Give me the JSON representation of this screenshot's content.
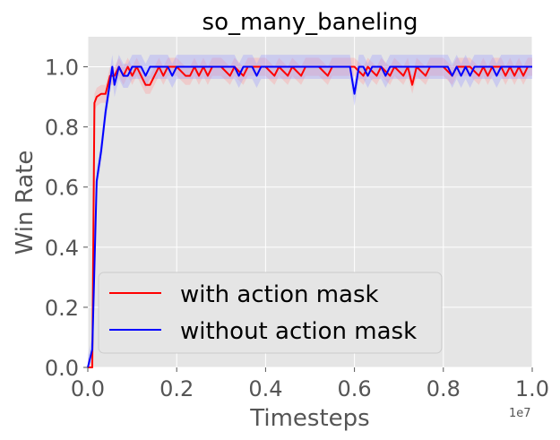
{
  "chart_data": {
    "type": "line",
    "title": "so_many_baneling",
    "xlabel": "Timesteps",
    "ylabel": "Win Rate",
    "x_offset_label": "1e7",
    "xlim": [
      0,
      1.0
    ],
    "ylim": [
      0,
      1.1
    ],
    "x_ticks": [
      "0.0",
      "0.2",
      "0.4",
      "0.6",
      "0.8",
      "1.0"
    ],
    "y_ticks": [
      "0.0",
      "0.2",
      "0.4",
      "0.6",
      "0.8",
      "1.0"
    ],
    "grid": true,
    "legend_position": "lower-left",
    "background": "#e5e5e5",
    "series": [
      {
        "name": "with action mask",
        "color": "#ff0000",
        "band_color": "#ff9b9b",
        "points": [
          [
            0.0,
            0.0
          ],
          [
            0.01,
            0.0
          ],
          [
            0.015,
            0.88
          ],
          [
            0.02,
            0.9
          ],
          [
            0.03,
            0.91
          ],
          [
            0.04,
            0.91
          ],
          [
            0.05,
            0.97
          ],
          [
            0.06,
            0.97
          ],
          [
            0.07,
            1.0
          ],
          [
            0.08,
            0.97
          ],
          [
            0.09,
            1.0
          ],
          [
            0.1,
            0.97
          ],
          [
            0.11,
            1.0
          ],
          [
            0.12,
            0.97
          ],
          [
            0.13,
            0.94
          ],
          [
            0.14,
            0.94
          ],
          [
            0.15,
            0.97
          ],
          [
            0.16,
            1.0
          ],
          [
            0.17,
            0.97
          ],
          [
            0.18,
            1.0
          ],
          [
            0.2,
            1.0
          ],
          [
            0.22,
            0.97
          ],
          [
            0.23,
            0.97
          ],
          [
            0.24,
            1.0
          ],
          [
            0.25,
            0.97
          ],
          [
            0.26,
            1.0
          ],
          [
            0.27,
            0.97
          ],
          [
            0.28,
            1.0
          ],
          [
            0.3,
            1.0
          ],
          [
            0.32,
            0.97
          ],
          [
            0.33,
            1.0
          ],
          [
            0.35,
            0.97
          ],
          [
            0.36,
            1.0
          ],
          [
            0.4,
            1.0
          ],
          [
            0.42,
            0.97
          ],
          [
            0.43,
            1.0
          ],
          [
            0.45,
            0.97
          ],
          [
            0.46,
            1.0
          ],
          [
            0.48,
            0.97
          ],
          [
            0.49,
            1.0
          ],
          [
            0.52,
            1.0
          ],
          [
            0.54,
            0.97
          ],
          [
            0.55,
            1.0
          ],
          [
            0.6,
            1.0
          ],
          [
            0.62,
            0.97
          ],
          [
            0.63,
            1.0
          ],
          [
            0.65,
            0.97
          ],
          [
            0.66,
            1.0
          ],
          [
            0.68,
            0.97
          ],
          [
            0.69,
            1.0
          ],
          [
            0.71,
            0.97
          ],
          [
            0.72,
            1.0
          ],
          [
            0.73,
            0.94
          ],
          [
            0.74,
            1.0
          ],
          [
            0.76,
            0.97
          ],
          [
            0.77,
            1.0
          ],
          [
            0.8,
            1.0
          ],
          [
            0.82,
            0.97
          ],
          [
            0.83,
            1.0
          ],
          [
            0.86,
            1.0
          ],
          [
            0.88,
            0.97
          ],
          [
            0.89,
            1.0
          ],
          [
            0.9,
            0.97
          ],
          [
            0.91,
            1.0
          ],
          [
            0.93,
            1.0
          ],
          [
            0.94,
            0.97
          ],
          [
            0.95,
            1.0
          ],
          [
            0.96,
            0.97
          ],
          [
            0.97,
            1.0
          ],
          [
            0.98,
            0.97
          ],
          [
            0.99,
            1.0
          ],
          [
            1.0,
            1.0
          ]
        ],
        "band_halfwidth": 0.03
      },
      {
        "name": "without action mask",
        "color": "#0000ff",
        "band_color": "#9b9bff",
        "points": [
          [
            0.0,
            0.0
          ],
          [
            0.01,
            0.06
          ],
          [
            0.02,
            0.62
          ],
          [
            0.03,
            0.72
          ],
          [
            0.04,
            0.85
          ],
          [
            0.05,
            0.95
          ],
          [
            0.055,
            1.0
          ],
          [
            0.06,
            0.94
          ],
          [
            0.07,
            1.0
          ],
          [
            0.08,
            0.97
          ],
          [
            0.09,
            0.97
          ],
          [
            0.1,
            1.0
          ],
          [
            0.12,
            1.0
          ],
          [
            0.13,
            0.97
          ],
          [
            0.14,
            1.0
          ],
          [
            0.18,
            1.0
          ],
          [
            0.19,
            0.97
          ],
          [
            0.2,
            1.0
          ],
          [
            0.33,
            1.0
          ],
          [
            0.34,
            0.97
          ],
          [
            0.35,
            1.0
          ],
          [
            0.37,
            1.0
          ],
          [
            0.38,
            0.97
          ],
          [
            0.39,
            1.0
          ],
          [
            0.59,
            1.0
          ],
          [
            0.6,
            0.91
          ],
          [
            0.61,
            1.0
          ],
          [
            0.62,
            1.0
          ],
          [
            0.63,
            0.97
          ],
          [
            0.64,
            1.0
          ],
          [
            0.66,
            1.0
          ],
          [
            0.67,
            0.97
          ],
          [
            0.68,
            1.0
          ],
          [
            0.81,
            1.0
          ],
          [
            0.82,
            0.97
          ],
          [
            0.83,
            1.0
          ],
          [
            0.84,
            0.97
          ],
          [
            0.85,
            1.0
          ],
          [
            0.86,
            0.97
          ],
          [
            0.87,
            1.0
          ],
          [
            0.91,
            1.0
          ],
          [
            0.92,
            0.97
          ],
          [
            0.93,
            1.0
          ],
          [
            1.0,
            1.0
          ]
        ],
        "band_halfwidth": 0.04
      }
    ]
  }
}
